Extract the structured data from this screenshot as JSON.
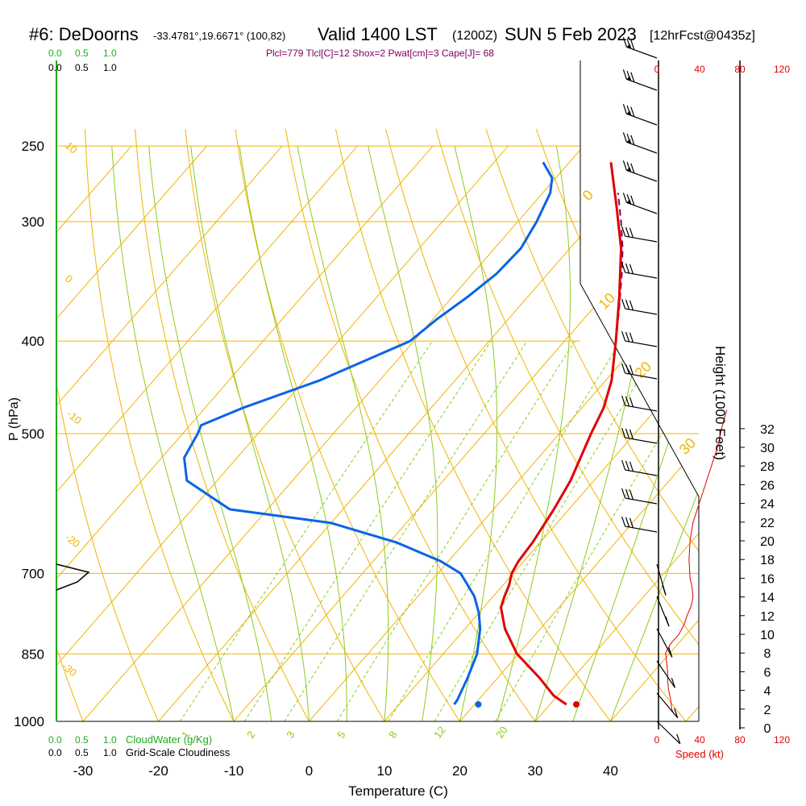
{
  "title": {
    "station": "#6: DeDoorns",
    "coords": "-33.4781°,19.6671° (100,82)",
    "valid": "Valid 1400 LST",
    "utc": "(1200Z)",
    "date": "SUN 5 Feb 2023",
    "fcst": "[12hrFcst@0435z]"
  },
  "stats_line": "Plcl=779 Tlcl[C]=12 Shox=2 Pwat[cm]=3 Cape[J]= 68",
  "labels": {
    "p_axis": "P (hPa)",
    "t_axis": "Temperature (C)",
    "height_axis": "Height (1000 Feet)",
    "speed_axis": "Speed (kt)",
    "cloudwater": "CloudWater (g/Kg)",
    "cloudiness": "Grid-Scale Cloudiness"
  },
  "colors": {
    "isobar": "#f0b400",
    "isotherm": "#f0b400",
    "dry_adiabat": "#f0b400",
    "moist_adiabat": "#8ccc1a",
    "mixing_ratio": "#8ccc1a",
    "temperature": "#e00000",
    "dewpoint": "#0a64e6",
    "parcel": "#800060",
    "stats": "#800060",
    "cloud_scale": "#22aa22",
    "speed": "#e00000"
  },
  "chart_data": [
    {
      "type": "line",
      "name": "skew-T log-P diagram",
      "xlabel": "Temperature (C)",
      "ylabel": "P (hPa)",
      "p_ticks": [
        250,
        300,
        400,
        500,
        700,
        850,
        1000
      ],
      "t_ticks": [
        -30,
        -20,
        -10,
        0,
        10,
        20,
        30,
        40
      ],
      "xlim": [
        -35,
        52
      ],
      "ylim": [
        1000,
        250
      ],
      "dry_adiabat_labels": [
        "10",
        "0",
        "-10",
        "-20",
        "-30"
      ],
      "moist_adiabat_labels": [
        "0",
        "10",
        "20",
        "30"
      ],
      "mixing_ratio_labels": [
        "1",
        "2",
        "3",
        "5",
        "8",
        "12",
        "20"
      ],
      "series": [
        {
          "name": "temperature",
          "p": [
            960,
            955,
            940,
            900,
            850,
            800,
            760,
            740,
            720,
            700,
            680,
            650,
            600,
            560,
            500,
            470,
            440,
            400,
            360,
            320,
            290,
            260
          ],
          "t": [
            32.2,
            31.5,
            29.5,
            25.5,
            19.8,
            15.3,
            12.3,
            11.5,
            10.8,
            9.8,
            9.3,
            9.0,
            8.0,
            6.9,
            4.2,
            2.9,
            0.8,
            -3.2,
            -7.8,
            -13.2,
            -18.5,
            -24.5
          ]
        },
        {
          "name": "dewpoint",
          "p": [
            960,
            950,
            900,
            850,
            800,
            770,
            740,
            720,
            700,
            680,
            650,
            620,
            600,
            560,
            530,
            500,
            490,
            470,
            440,
            400,
            380,
            360,
            340,
            320,
            300,
            280,
            270,
            260
          ],
          "t": [
            17.3,
            17.2,
            16.0,
            14.5,
            12.0,
            10.0,
            7.5,
            5.3,
            3.0,
            -1.0,
            -9.0,
            -20.0,
            -35.0,
            -44.0,
            -47.0,
            -48.0,
            -48.5,
            -45.0,
            -38.0,
            -30.5,
            -29.5,
            -28.0,
            -26.8,
            -26.5,
            -27.5,
            -29.0,
            -30.5,
            -33.5
          ]
        },
        {
          "name": "parcel",
          "p": [
            400,
            370,
            340,
            320,
            300,
            280
          ],
          "t": [
            -3.2,
            -6.5,
            -10.2,
            -13.0,
            -16.3,
            -20.0
          ]
        },
        {
          "name": "surface",
          "points": [
            {
              "p": 960,
              "t": 33.5,
              "kind": "temperature"
            },
            {
              "p": 960,
              "t": 20.5,
              "kind": "dewpoint"
            }
          ]
        }
      ]
    },
    {
      "type": "line",
      "name": "wind speed profile",
      "xlabel": "Speed (kt)",
      "ylabel": "Height (1000 Feet)",
      "xlim": [
        0,
        120
      ],
      "speed_ticks": [
        0,
        40,
        80,
        120
      ],
      "height_ticks": [
        0,
        2,
        4,
        6,
        8,
        10,
        12,
        14,
        16,
        18,
        20,
        22,
        24,
        26,
        28,
        30,
        32
      ],
      "height_ft": [
        1.5,
        2.0,
        3.0,
        4.0,
        5.0,
        6.0,
        7.0,
        8.0,
        9.0,
        10.0,
        11.0,
        12.0,
        13.0,
        14.0,
        15.0,
        16.0,
        18.0,
        20.0,
        22.0,
        24.0,
        26.0,
        28.0,
        30.0,
        32.0,
        34.0
      ],
      "speed_kt": [
        15,
        13,
        12,
        10,
        9,
        9,
        8,
        7,
        12,
        20,
        25,
        28,
        32,
        34,
        33,
        31,
        30,
        31,
        34,
        40,
        46,
        52,
        58,
        62,
        67
      ]
    }
  ]
}
